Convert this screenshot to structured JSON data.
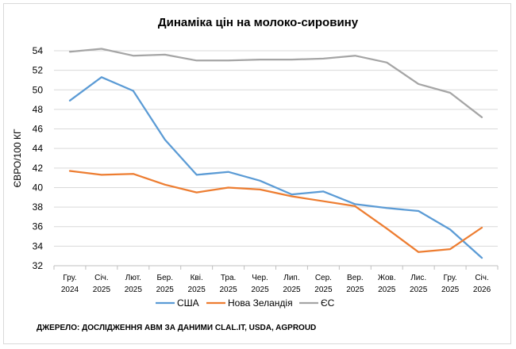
{
  "chart_data": {
    "type": "line",
    "title": "Динаміка цін на молоко-сировину",
    "ylabel": "ЄВРО/100 КГ",
    "xlabel": "",
    "ylim": [
      32,
      54
    ],
    "yticks": [
      32,
      34,
      36,
      38,
      40,
      42,
      44,
      46,
      48,
      50,
      52,
      54
    ],
    "grid": true,
    "legend": "bottom",
    "categories": [
      [
        "Гру.",
        "2024"
      ],
      [
        "Січ.",
        "2025"
      ],
      [
        "Лют.",
        "2025"
      ],
      [
        "Бер.",
        "2025"
      ],
      [
        "Кві.",
        "2025"
      ],
      [
        "Тра.",
        "2025"
      ],
      [
        "Чер.",
        "2025"
      ],
      [
        "Лип.",
        "2025"
      ],
      [
        "Сер.",
        "2025"
      ],
      [
        "Вер.",
        "2025"
      ],
      [
        "Жов.",
        "2025"
      ],
      [
        "Лис.",
        "2025"
      ],
      [
        "Гру.",
        "2025"
      ],
      [
        "Січ.",
        "2026"
      ]
    ],
    "series": [
      {
        "name": "США",
        "color": "#5b9bd5",
        "values": [
          48.9,
          51.3,
          49.9,
          44.9,
          41.3,
          41.6,
          40.7,
          39.3,
          39.6,
          38.3,
          37.9,
          37.6,
          35.7,
          32.8
        ]
      },
      {
        "name": "Нова Зеландія",
        "color": "#ed7d31",
        "values": [
          41.7,
          41.3,
          41.4,
          40.3,
          39.5,
          40.0,
          39.8,
          39.1,
          38.6,
          38.1,
          35.8,
          33.4,
          33.7,
          35.9
        ]
      },
      {
        "name": "ЄС",
        "color": "#a5a5a5",
        "values": [
          53.9,
          54.2,
          53.5,
          53.6,
          53.0,
          53.0,
          53.1,
          53.1,
          53.2,
          53.5,
          52.8,
          50.6,
          49.7,
          47.2
        ]
      }
    ]
  },
  "source_note": "ДЖЕРЕЛО: ДОСЛІДЖЕННЯ АВМ ЗА ДАНИМИ CLAL.IT, USDA, AGPROUD"
}
